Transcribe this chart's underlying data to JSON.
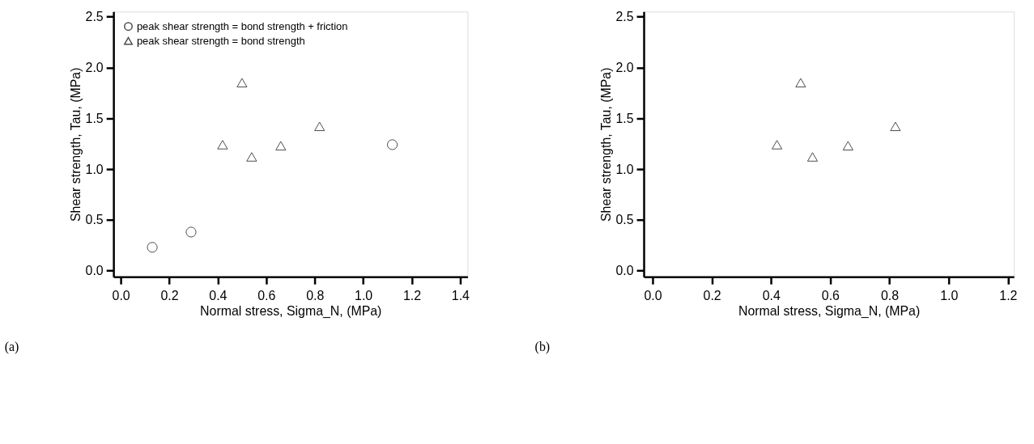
{
  "chart_data": [
    {
      "type": "scatter",
      "xlabel": "Normal stress, Sigma_N, (MPa)",
      "ylabel": "Shear strength, Tau, (MPa)",
      "xlim": [
        -0.03,
        1.43
      ],
      "ylim": [
        -0.06,
        2.55
      ],
      "xticks": [
        {
          "value": 0,
          "label": "0.0"
        },
        {
          "value": 0.2,
          "label": "0.2"
        },
        {
          "value": 0.4,
          "label": "0.4"
        },
        {
          "value": 0.6,
          "label": "0.6"
        },
        {
          "value": 0.8,
          "label": "0.8"
        },
        {
          "value": 1.0,
          "label": "1.0"
        },
        {
          "value": 1.2,
          "label": "1.2"
        },
        {
          "value": 1.4,
          "label": "1.4"
        }
      ],
      "yticks": [
        {
          "value": 0,
          "label": "0.0"
        },
        {
          "value": 0.5,
          "label": "0.5"
        },
        {
          "value": 1.0,
          "label": "1.0"
        },
        {
          "value": 1.5,
          "label": "1.5"
        },
        {
          "value": 2.0,
          "label": "2.0"
        },
        {
          "value": 2.5,
          "label": "2.5"
        }
      ],
      "legend": "top left",
      "series": [
        {
          "name": "peak shear strength = bond strength + friction",
          "color": "#000000",
          "marker": "circle",
          "x": [
            0.13,
            0.29,
            1.12
          ],
          "values": [
            0.23,
            0.38,
            1.24
          ]
        },
        {
          "name": "peak shear strength = bond strength",
          "color": "#000000",
          "marker": "triangle",
          "x": [
            0.42,
            0.5,
            0.54,
            0.66,
            0.82
          ],
          "values": [
            1.24,
            1.85,
            1.12,
            1.23,
            1.42
          ]
        }
      ],
      "annotations": [
        "(a)"
      ]
    },
    {
      "type": "scatter",
      "xlabel": "Normal stress, Sigma_N, (MPa)",
      "ylabel": "Shear strength, Tau, (MPa)",
      "xlim": [
        -0.03,
        1.22
      ],
      "ylim": [
        -0.06,
        2.55
      ],
      "xticks": [
        {
          "value": 0,
          "label": "0.0"
        },
        {
          "value": 0.2,
          "label": "0.2"
        },
        {
          "value": 0.4,
          "label": "0.4"
        },
        {
          "value": 0.6,
          "label": "0.6"
        },
        {
          "value": 0.8,
          "label": "0.8"
        },
        {
          "value": 1.0,
          "label": "1.0"
        },
        {
          "value": 1.2,
          "label": "1.2"
        }
      ],
      "yticks": [
        {
          "value": 0,
          "label": "0.0"
        },
        {
          "value": 0.5,
          "label": "0.5"
        },
        {
          "value": 1.0,
          "label": "1.0"
        },
        {
          "value": 1.5,
          "label": "1.5"
        },
        {
          "value": 2.0,
          "label": "2.0"
        },
        {
          "value": 2.5,
          "label": "2.5"
        }
      ],
      "series": [
        {
          "color": "#000000",
          "marker": "triangle",
          "x": [
            0.42,
            0.5,
            0.54,
            0.66,
            0.82
          ],
          "values": [
            1.24,
            1.85,
            1.12,
            1.23,
            1.42
          ]
        }
      ],
      "annotations": [
        "(b)"
      ]
    }
  ]
}
